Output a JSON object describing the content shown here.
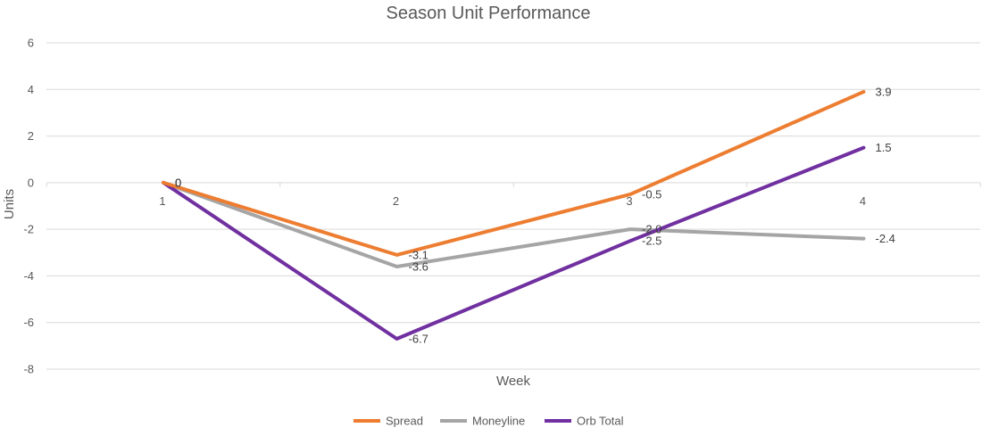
{
  "chart_data": {
    "type": "line",
    "title": "Season Unit Performance",
    "xlabel": "Week",
    "ylabel": "Units",
    "categories": [
      "1",
      "2",
      "3",
      "4"
    ],
    "ylim": [
      -8,
      6
    ],
    "yticks": [
      6,
      4,
      2,
      0,
      -2,
      -4,
      -6,
      -8
    ],
    "grid": true,
    "legend_position": "bottom",
    "series": [
      {
        "name": "Spread",
        "color": "#ED7D31",
        "values": [
          0,
          -3.1,
          -0.5,
          3.9
        ],
        "labels": [
          "0",
          "-3.1",
          "-0.5",
          "3.9"
        ]
      },
      {
        "name": "Moneyline",
        "color": "#A5A5A5",
        "values": [
          0,
          -3.6,
          -2.0,
          -2.4
        ],
        "labels": [
          "0",
          "-3.6",
          "-2.0",
          "-2.4"
        ]
      },
      {
        "name": "Orb Total",
        "color": "#7030A0",
        "values": [
          0,
          -6.7,
          -2.5,
          1.5
        ],
        "labels": [
          "0",
          "-6.7",
          "-2.5",
          "1.5"
        ]
      }
    ]
  }
}
